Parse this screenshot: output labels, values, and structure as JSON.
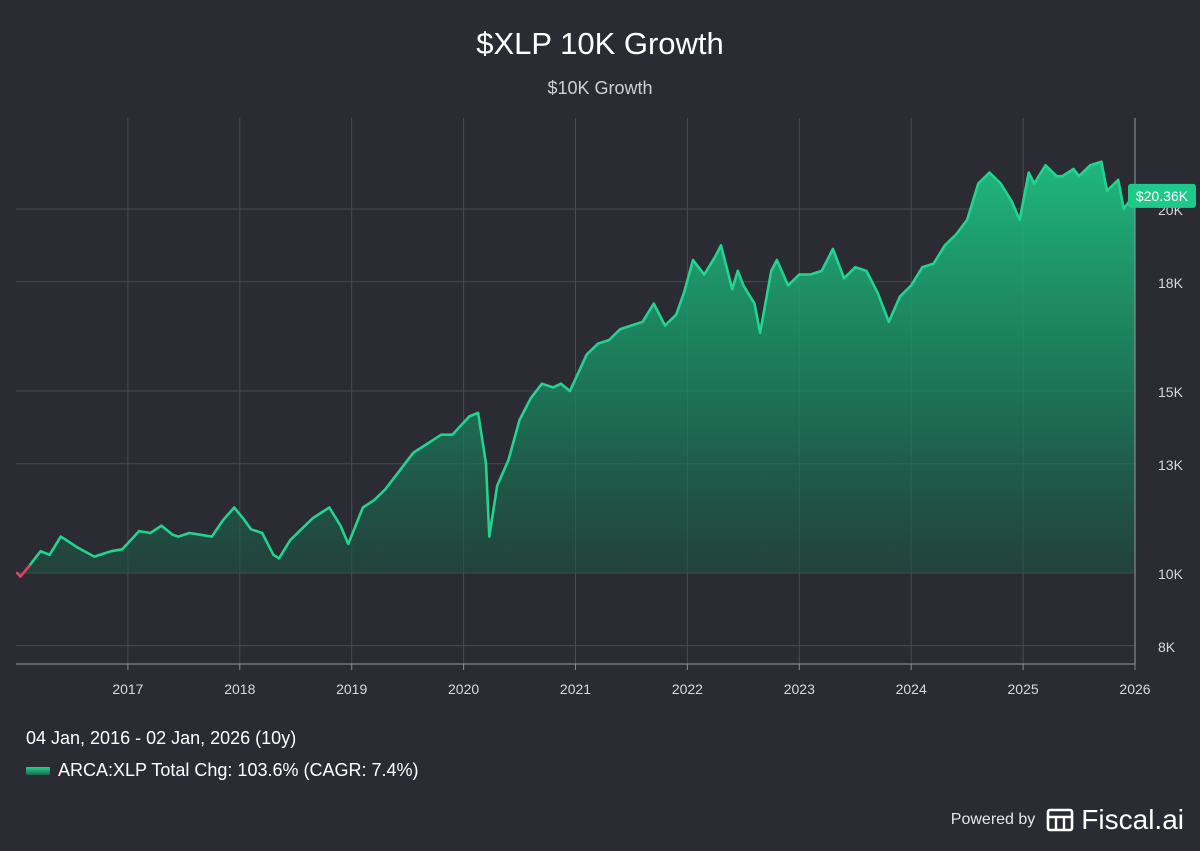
{
  "chart_data": {
    "type": "area",
    "title": "$XLP 10K Growth",
    "subtitle": "$10K Growth",
    "xlabel": "",
    "ylabel": "",
    "x_ticks": [
      "2017",
      "2018",
      "2019",
      "2020",
      "2021",
      "2022",
      "2023",
      "2024",
      "2025",
      "2026"
    ],
    "y_ticks": [
      "8K",
      "10K",
      "13K",
      "15K",
      "18K",
      "20K"
    ],
    "ylim": [
      7500,
      22500
    ],
    "xlim": [
      2016.0,
      2026.0
    ],
    "grid": true,
    "series": [
      {
        "name": "ARCA:XLP",
        "color": "#22d48f",
        "negative_color": "#e0445a",
        "x": [
          2016.01,
          2016.04,
          2016.12,
          2016.22,
          2016.3,
          2016.4,
          2016.45,
          2016.55,
          2016.7,
          2016.85,
          2016.95,
          2017.1,
          2017.2,
          2017.3,
          2017.4,
          2017.45,
          2017.55,
          2017.65,
          2017.75,
          2017.85,
          2017.95,
          2018.03,
          2018.1,
          2018.2,
          2018.3,
          2018.35,
          2018.45,
          2018.55,
          2018.65,
          2018.75,
          2018.8,
          2018.9,
          2018.97,
          2019.1,
          2019.2,
          2019.3,
          2019.45,
          2019.55,
          2019.65,
          2019.8,
          2019.9,
          2020.05,
          2020.13,
          2020.2,
          2020.23,
          2020.3,
          2020.4,
          2020.5,
          2020.6,
          2020.7,
          2020.8,
          2020.87,
          2020.95,
          2021.1,
          2021.2,
          2021.3,
          2021.4,
          2021.5,
          2021.6,
          2021.7,
          2021.8,
          2021.9,
          2021.97,
          2022.05,
          2022.15,
          2022.25,
          2022.3,
          2022.4,
          2022.45,
          2022.5,
          2022.6,
          2022.65,
          2022.75,
          2022.8,
          2022.9,
          2023.0,
          2023.1,
          2023.2,
          2023.3,
          2023.4,
          2023.5,
          2023.6,
          2023.7,
          2023.8,
          2023.9,
          2024.0,
          2024.1,
          2024.2,
          2024.3,
          2024.4,
          2024.5,
          2024.6,
          2024.7,
          2024.8,
          2024.9,
          2024.97,
          2025.05,
          2025.1,
          2025.2,
          2025.3,
          2025.35,
          2025.45,
          2025.5,
          2025.6,
          2025.7,
          2025.75,
          2025.85,
          2025.9,
          2025.97,
          2026.0
        ],
        "values": [
          10000,
          9900,
          10200,
          10600,
          10500,
          11000,
          10900,
          10700,
          10450,
          10600,
          10650,
          11150,
          11100,
          11300,
          11050,
          11000,
          11100,
          11050,
          11000,
          11450,
          11800,
          11500,
          11200,
          11100,
          10500,
          10400,
          10900,
          11200,
          11500,
          11700,
          11800,
          11300,
          10800,
          11800,
          12000,
          12300,
          12900,
          13300,
          13500,
          13800,
          13800,
          14300,
          14400,
          13000,
          11000,
          12400,
          13100,
          14200,
          14800,
          15200,
          15100,
          15200,
          15000,
          16000,
          16300,
          16400,
          16700,
          16800,
          16900,
          17400,
          16800,
          17100,
          17700,
          18600,
          18200,
          18700,
          19000,
          17800,
          18300,
          17900,
          17400,
          16600,
          18300,
          18600,
          17900,
          18200,
          18200,
          18300,
          18900,
          18100,
          18400,
          18300,
          17700,
          16900,
          17600,
          17900,
          18400,
          18500,
          19000,
          19300,
          19700,
          20700,
          21000,
          20700,
          20200,
          19700,
          21000,
          20700,
          21200,
          20900,
          20900,
          21100,
          20900,
          21200,
          21300,
          20500,
          20800,
          20000,
          20300,
          20360
        ]
      }
    ],
    "end_label": "$20.36K"
  },
  "footer": {
    "range_text": "04 Jan, 2016 - 02 Jan, 2026 (10y)",
    "legend_text": "ARCA:XLP Total Chg: 103.6% (CAGR: 7.4%)",
    "powered_by": "Powered by",
    "brand": "Fiscal.ai"
  }
}
